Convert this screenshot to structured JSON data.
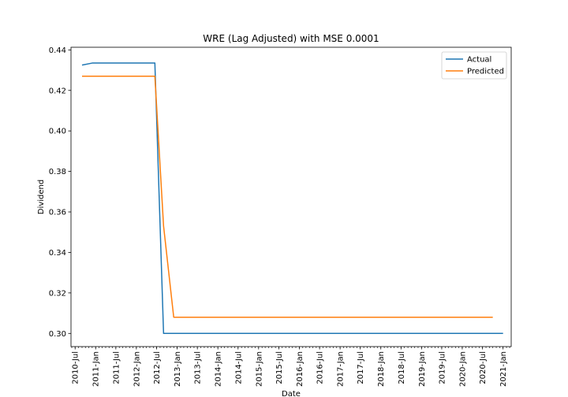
{
  "chart_data": {
    "type": "line",
    "title": "WRE (Lag Adjusted) with MSE     0.0001",
    "xlabel": "Date",
    "ylabel": "Dividend",
    "xlim": [
      "2010-05-25",
      "2021-03-15"
    ],
    "ylim": [
      0.2935,
      0.4413
    ],
    "y_ticks": [
      0.3,
      0.32,
      0.34,
      0.36,
      0.38,
      0.4,
      0.42,
      0.44
    ],
    "x_ticks": [
      {
        "date": "2010-07-01",
        "label": "2010-Jul"
      },
      {
        "date": "2011-01-01",
        "label": "2011-Jan"
      },
      {
        "date": "2011-07-01",
        "label": "2011-Jul"
      },
      {
        "date": "2012-01-01",
        "label": "2012-Jan"
      },
      {
        "date": "2012-07-01",
        "label": "2012-Jul"
      },
      {
        "date": "2013-01-01",
        "label": "2013-Jan"
      },
      {
        "date": "2013-07-01",
        "label": "2013-Jul"
      },
      {
        "date": "2014-01-01",
        "label": "2014-Jan"
      },
      {
        "date": "2014-07-01",
        "label": "2014-Jul"
      },
      {
        "date": "2015-01-01",
        "label": "2015-Jan"
      },
      {
        "date": "2015-07-01",
        "label": "2015-Jul"
      },
      {
        "date": "2016-01-01",
        "label": "2016-Jan"
      },
      {
        "date": "2016-07-01",
        "label": "2016-Jul"
      },
      {
        "date": "2017-01-01",
        "label": "2017-Jan"
      },
      {
        "date": "2017-07-01",
        "label": "2017-Jul"
      },
      {
        "date": "2018-01-01",
        "label": "2018-Jan"
      },
      {
        "date": "2018-07-01",
        "label": "2018-Jul"
      },
      {
        "date": "2019-01-01",
        "label": "2019-Jan"
      },
      {
        "date": "2019-07-01",
        "label": "2019-Jul"
      },
      {
        "date": "2020-01-01",
        "label": "2020-Jan"
      },
      {
        "date": "2020-07-01",
        "label": "2020-Jul"
      },
      {
        "date": "2021-01-01",
        "label": "2021-Jan"
      }
    ],
    "minor_ticks": "monthly",
    "grid": false,
    "legend": "upper right",
    "series": [
      {
        "name": "Actual",
        "color": "#1f77b4",
        "points": [
          {
            "x": "2010-09-01",
            "y": 0.4325
          },
          {
            "x": "2010-12-01",
            "y": 0.4335
          },
          {
            "x": "2012-06-15",
            "y": 0.4335
          },
          {
            "x": "2012-09-01",
            "y": 0.3
          },
          {
            "x": "2021-01-01",
            "y": 0.3
          }
        ]
      },
      {
        "name": "Predicted",
        "color": "#ff7f0e",
        "points": [
          {
            "x": "2010-09-01",
            "y": 0.427
          },
          {
            "x": "2012-06-15",
            "y": 0.427
          },
          {
            "x": "2012-09-01",
            "y": 0.353
          },
          {
            "x": "2012-12-01",
            "y": 0.308
          },
          {
            "x": "2020-10-01",
            "y": 0.308
          }
        ]
      }
    ]
  }
}
